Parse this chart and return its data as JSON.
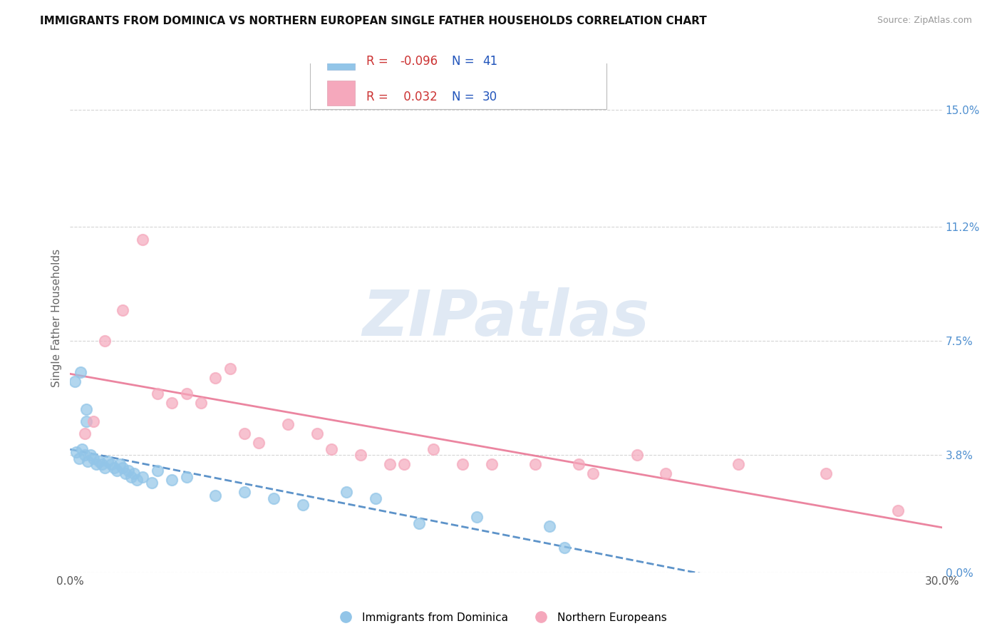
{
  "title": "IMMIGRANTS FROM DOMINICA VS NORTHERN EUROPEAN SINGLE FATHER HOUSEHOLDS CORRELATION CHART",
  "source": "Source: ZipAtlas.com",
  "ylabel": "Single Father Households",
  "y_ticks": [
    0.0,
    3.8,
    7.5,
    11.2,
    15.0
  ],
  "xlim": [
    0.0,
    30.0
  ],
  "ylim": [
    0.0,
    16.5
  ],
  "blue_scatter": [
    [
      0.15,
      6.2
    ],
    [
      0.35,
      6.5
    ],
    [
      0.55,
      5.3
    ],
    [
      0.55,
      4.9
    ],
    [
      0.2,
      3.9
    ],
    [
      0.3,
      3.7
    ],
    [
      0.4,
      4.0
    ],
    [
      0.5,
      3.8
    ],
    [
      0.6,
      3.6
    ],
    [
      0.7,
      3.8
    ],
    [
      0.8,
      3.7
    ],
    [
      0.9,
      3.5
    ],
    [
      1.0,
      3.6
    ],
    [
      1.1,
      3.5
    ],
    [
      1.2,
      3.4
    ],
    [
      1.3,
      3.6
    ],
    [
      1.4,
      3.5
    ],
    [
      1.5,
      3.4
    ],
    [
      1.6,
      3.3
    ],
    [
      1.7,
      3.5
    ],
    [
      1.8,
      3.4
    ],
    [
      1.9,
      3.2
    ],
    [
      2.0,
      3.3
    ],
    [
      2.1,
      3.1
    ],
    [
      2.2,
      3.2
    ],
    [
      2.3,
      3.0
    ],
    [
      2.5,
      3.1
    ],
    [
      2.8,
      2.9
    ],
    [
      3.0,
      3.3
    ],
    [
      3.5,
      3.0
    ],
    [
      4.0,
      3.1
    ],
    [
      5.0,
      2.5
    ],
    [
      6.0,
      2.6
    ],
    [
      7.0,
      2.4
    ],
    [
      8.0,
      2.2
    ],
    [
      9.5,
      2.6
    ],
    [
      10.5,
      2.4
    ],
    [
      12.0,
      1.6
    ],
    [
      14.0,
      1.8
    ],
    [
      16.5,
      1.5
    ],
    [
      17.0,
      0.8
    ]
  ],
  "pink_scatter": [
    [
      0.5,
      4.5
    ],
    [
      0.8,
      4.9
    ],
    [
      1.2,
      7.5
    ],
    [
      1.8,
      8.5
    ],
    [
      2.5,
      10.8
    ],
    [
      3.0,
      5.8
    ],
    [
      3.5,
      5.5
    ],
    [
      4.0,
      5.8
    ],
    [
      4.5,
      5.5
    ],
    [
      5.0,
      6.3
    ],
    [
      5.5,
      6.6
    ],
    [
      6.0,
      4.5
    ],
    [
      6.5,
      4.2
    ],
    [
      7.5,
      4.8
    ],
    [
      8.5,
      4.5
    ],
    [
      9.0,
      4.0
    ],
    [
      10.0,
      3.8
    ],
    [
      11.0,
      3.5
    ],
    [
      11.5,
      3.5
    ],
    [
      12.5,
      4.0
    ],
    [
      13.5,
      3.5
    ],
    [
      14.5,
      3.5
    ],
    [
      16.0,
      3.5
    ],
    [
      17.5,
      3.5
    ],
    [
      18.0,
      3.2
    ],
    [
      19.5,
      3.8
    ],
    [
      20.5,
      3.2
    ],
    [
      23.0,
      3.5
    ],
    [
      26.0,
      3.2
    ],
    [
      28.5,
      2.0
    ]
  ],
  "blue_color": "#92c5e8",
  "pink_color": "#f5a8bc",
  "blue_line_color": "#4080c0",
  "pink_line_color": "#e87090",
  "watermark_text": "ZIPatlas",
  "watermark_color": "#c8d8ec",
  "background_color": "#ffffff",
  "grid_color": "#d5d5d5",
  "right_tick_color": "#5090d0",
  "legend_r_color": "#cc3333",
  "legend_n_color": "#2266cc"
}
